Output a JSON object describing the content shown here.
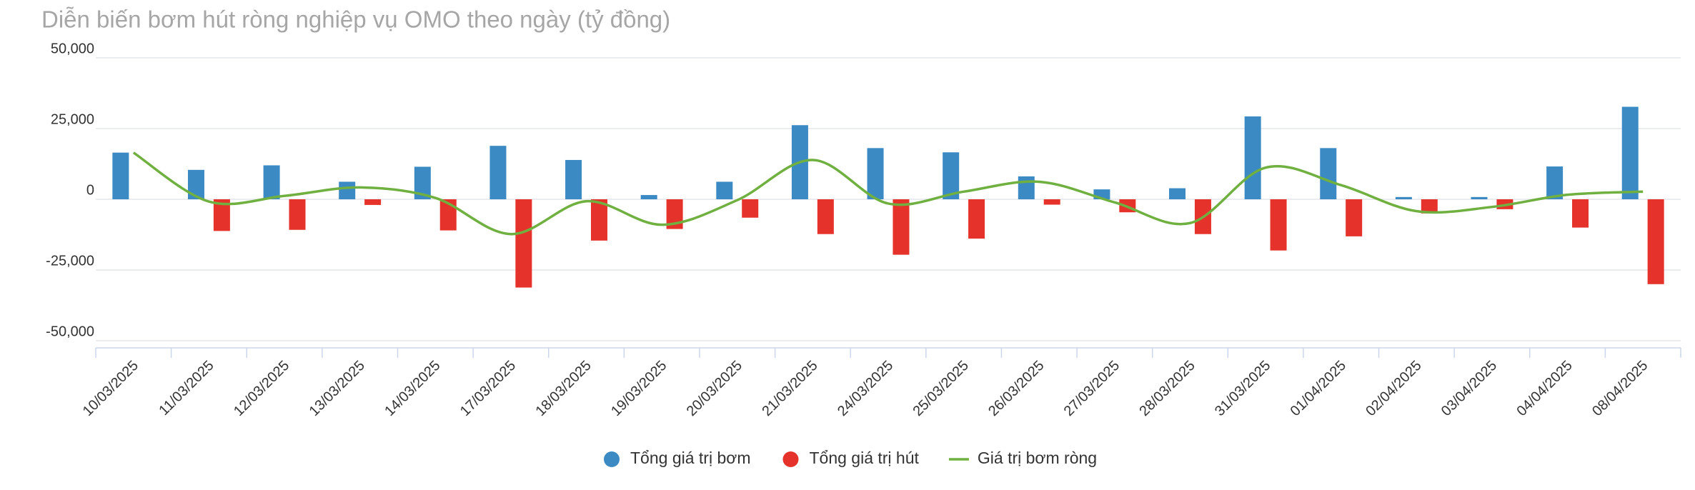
{
  "chart_data": {
    "type": "bar",
    "title": "Diễn biến bơm hút ròng nghiệp vụ OMO theo ngày (tỷ đồng)",
    "categories": [
      "10/03/2025",
      "11/03/2025",
      "12/03/2025",
      "13/03/2025",
      "14/03/2025",
      "17/03/2025",
      "18/03/2025",
      "19/03/2025",
      "20/03/2025",
      "21/03/2025",
      "24/03/2025",
      "25/03/2025",
      "26/03/2025",
      "27/03/2025",
      "28/03/2025",
      "31/03/2025",
      "01/04/2025",
      "02/04/2025",
      "03/04/2025",
      "04/04/2025",
      "08/04/2025"
    ],
    "series": [
      {
        "name": "Tổng giá trị bơm",
        "color": "#3b8ac4",
        "type": "bar",
        "values": [
          16500,
          10400,
          12000,
          6200,
          11500,
          18900,
          13900,
          1500,
          6200,
          26200,
          18100,
          16600,
          8100,
          3500,
          3900,
          29300,
          18100,
          800,
          800,
          11600,
          32700
        ]
      },
      {
        "name": "Tổng giá trị hút",
        "color": "#e5322a",
        "type": "bar",
        "values": [
          0,
          -11200,
          -10800,
          -2000,
          -11000,
          -31200,
          -14600,
          -10500,
          -6500,
          -12300,
          -19600,
          -13900,
          -1900,
          -4600,
          -12300,
          -18100,
          -13100,
          -5000,
          -3500,
          -10000,
          -30000
        ]
      },
      {
        "name": "Giá trị bơm ròng",
        "color": "#6fb040",
        "type": "line",
        "values": [
          16500,
          -800,
          1200,
          4200,
          500,
          -12300,
          -700,
          -9000,
          -300,
          13900,
          -1500,
          2700,
          6200,
          -1100,
          -8400,
          11200,
          5000,
          -4200,
          -2700,
          1600,
          2700
        ]
      }
    ],
    "ylim": [
      -50000,
      50000
    ],
    "yticks": [
      {
        "value": -50000,
        "label": "-50,000"
      },
      {
        "value": -25000,
        "label": "-25,000"
      },
      0,
      {
        "value": 25000,
        "label": "25,000"
      },
      {
        "value": 50000,
        "label": "50,000"
      }
    ],
    "grid": true
  }
}
